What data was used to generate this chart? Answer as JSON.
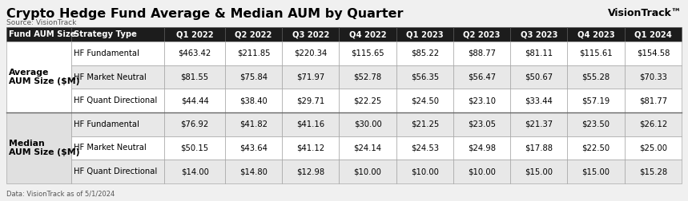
{
  "title": "Crypto Hedge Fund Average & Median AUM by Quarter",
  "source": "Source: VisionTrack",
  "footnote": "Data: VisionTrack as of 5/1/2024",
  "brand": "VisionTrack",
  "brand_suffix": "™",
  "header_bg": "#1c1c1c",
  "header_fg": "#ffffff",
  "col1_header": "Fund AUM Size",
  "col2_header": "Strategy Type",
  "quarters": [
    "Q1 2022",
    "Q2 2022",
    "Q3 2022",
    "Q4 2022",
    "Q1 2023",
    "Q2 2023",
    "Q3 2023",
    "Q4 2023",
    "Q1 2024"
  ],
  "row_group1_label": "Average\nAUM Size ($M)",
  "row_group2_label": "Median\nAUM Size ($M)",
  "rows": [
    {
      "group": 1,
      "strategy": "HF Fundamental",
      "values": [
        "$463.42",
        "$211.85",
        "$220.34",
        "$115.65",
        "$85.22",
        "$88.77",
        "$81.11",
        "$115.61",
        "$154.58"
      ],
      "bg": "#ffffff"
    },
    {
      "group": 1,
      "strategy": "HF Market Neutral",
      "values": [
        "$81.55",
        "$75.84",
        "$71.97",
        "$52.78",
        "$56.35",
        "$56.47",
        "$50.67",
        "$55.28",
        "$70.33"
      ],
      "bg": "#e8e8e8"
    },
    {
      "group": 1,
      "strategy": "HF Quant Directional",
      "values": [
        "$44.44",
        "$38.40",
        "$29.71",
        "$22.25",
        "$24.50",
        "$23.10",
        "$33.44",
        "$57.19",
        "$81.77"
      ],
      "bg": "#ffffff"
    },
    {
      "group": 2,
      "strategy": "HF Fundamental",
      "values": [
        "$76.92",
        "$41.82",
        "$41.16",
        "$30.00",
        "$21.25",
        "$23.05",
        "$21.37",
        "$23.50",
        "$26.12"
      ],
      "bg": "#e8e8e8"
    },
    {
      "group": 2,
      "strategy": "HF Market Neutral",
      "values": [
        "$50.15",
        "$43.64",
        "$41.12",
        "$24.14",
        "$24.53",
        "$24.98",
        "$17.88",
        "$22.50",
        "$25.00"
      ],
      "bg": "#ffffff"
    },
    {
      "group": 2,
      "strategy": "HF Quant Directional",
      "values": [
        "$14.00",
        "$14.80",
        "$12.98",
        "$10.00",
        "$10.00",
        "$10.00",
        "$15.00",
        "$15.00",
        "$15.28"
      ],
      "bg": "#e8e8e8"
    }
  ],
  "group1_label_bg": "#ffffff",
  "group2_label_bg": "#e0e0e0",
  "title_fontsize": 11.5,
  "source_fontsize": 6.5,
  "brand_fontsize": 9,
  "header_fontsize": 7.2,
  "cell_fontsize": 7.2,
  "label_fontsize": 7.8,
  "footnote_fontsize": 6
}
